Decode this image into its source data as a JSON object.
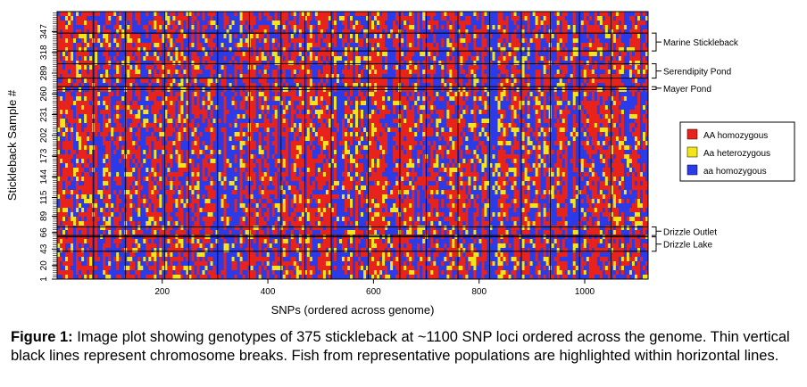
{
  "chart_data": {
    "type": "heatmap",
    "title": "",
    "xlabel": "SNPs (ordered across genome)",
    "ylabel": "Stickleback Sample #",
    "x_ticks": [
      200,
      400,
      600,
      800,
      1000
    ],
    "y_ticks": [
      1,
      20,
      43,
      66,
      89,
      115,
      144,
      173,
      202,
      231,
      260,
      289,
      318,
      347
    ],
    "xlim": [
      1,
      1120
    ],
    "ylim": [
      1,
      375
    ],
    "n_samples": 375,
    "n_snps": 1100,
    "colors": {
      "AA homozygous": "#e8231b",
      "Aa heterozygous": "#f2e51a",
      "aa homozygous": "#2b3be8"
    },
    "legend": {
      "position": "right",
      "entries": [
        {
          "label": "AA homozygous",
          "color": "#e8231b"
        },
        {
          "label": "Aa heterozygous",
          "color": "#f2e51a"
        },
        {
          "label": "aa homozygous",
          "color": "#2b3be8"
        }
      ]
    },
    "populations": [
      {
        "name": "Marine Stickleback",
        "sample_range": [
          320,
          345
        ]
      },
      {
        "name": "Serendipity Pond",
        "sample_range": [
          282,
          302
        ]
      },
      {
        "name": "Mayer Pond",
        "sample_range": [
          266,
          270
        ]
      },
      {
        "name": "Drizzle Outlet",
        "sample_range": [
          62,
          74
        ]
      },
      {
        "name": "Drizzle Lake",
        "sample_range": [
          40,
          60
        ]
      }
    ],
    "chromosome_breaks": [
      70,
      130,
      205,
      250,
      305,
      365,
      425,
      470,
      520,
      590,
      650,
      700,
      760,
      820,
      880,
      935,
      990,
      1050
    ]
  },
  "caption": {
    "label": "Figure 1:",
    "text": " Image plot showing genotypes of 375 stickleback at ~1100 SNP loci ordered across the genome. Thin vertical black lines represent chromosome breaks. Fish from representative populations are highlighted within horizontal lines."
  }
}
